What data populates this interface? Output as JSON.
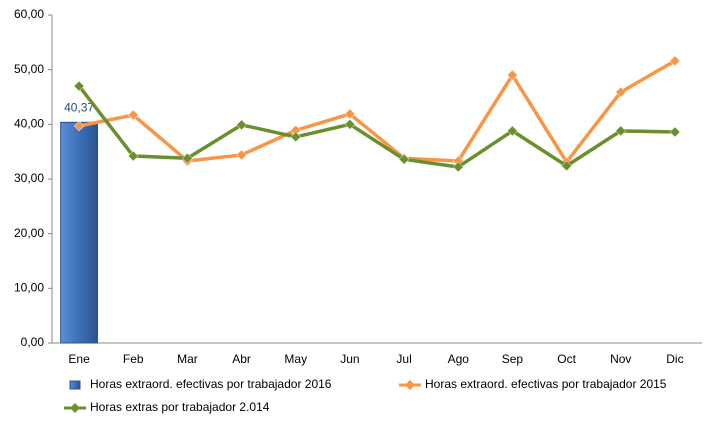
{
  "chart_data": {
    "type": "bar",
    "categories": [
      "Ene",
      "Feb",
      "Mar",
      "Abr",
      "May",
      "Jun",
      "Jul",
      "Ago",
      "Sep",
      "Oct",
      "Nov",
      "Dic"
    ],
    "series": [
      {
        "name": "Horas extraord. efectivas por trabajador 2016",
        "type": "bar",
        "color": "#3d6fb6",
        "values": [
          40.37,
          null,
          null,
          null,
          null,
          null,
          null,
          null,
          null,
          null,
          null,
          null
        ],
        "value_labels": [
          "40,37",
          null,
          null,
          null,
          null,
          null,
          null,
          null,
          null,
          null,
          null,
          null
        ]
      },
      {
        "name": "Horas extraord. efectivas por trabajador 2015",
        "type": "line",
        "color": "#f79646",
        "values": [
          39.7,
          41.7,
          33.3,
          34.4,
          38.9,
          41.9,
          33.8,
          33.3,
          49.0,
          33.1,
          45.9,
          51.6
        ]
      },
      {
        "name": "Horas extras por trabajador 2.014",
        "type": "line",
        "color": "#6a8f2e",
        "values": [
          47.0,
          34.2,
          33.8,
          39.9,
          37.7,
          40.0,
          33.6,
          32.2,
          38.8,
          32.4,
          38.8,
          38.6
        ]
      }
    ],
    "ylim": [
      0,
      60
    ],
    "yticks": [
      {
        "value": 0,
        "label": "0,00"
      },
      {
        "value": 10,
        "label": "10,00"
      },
      {
        "value": 20,
        "label": "20,00"
      },
      {
        "value": 30,
        "label": "30,00"
      },
      {
        "value": 40,
        "label": "40,00"
      },
      {
        "value": 50,
        "label": "50,00"
      },
      {
        "value": 60,
        "label": "60,00"
      }
    ],
    "grid": false,
    "legend": "bottom"
  }
}
